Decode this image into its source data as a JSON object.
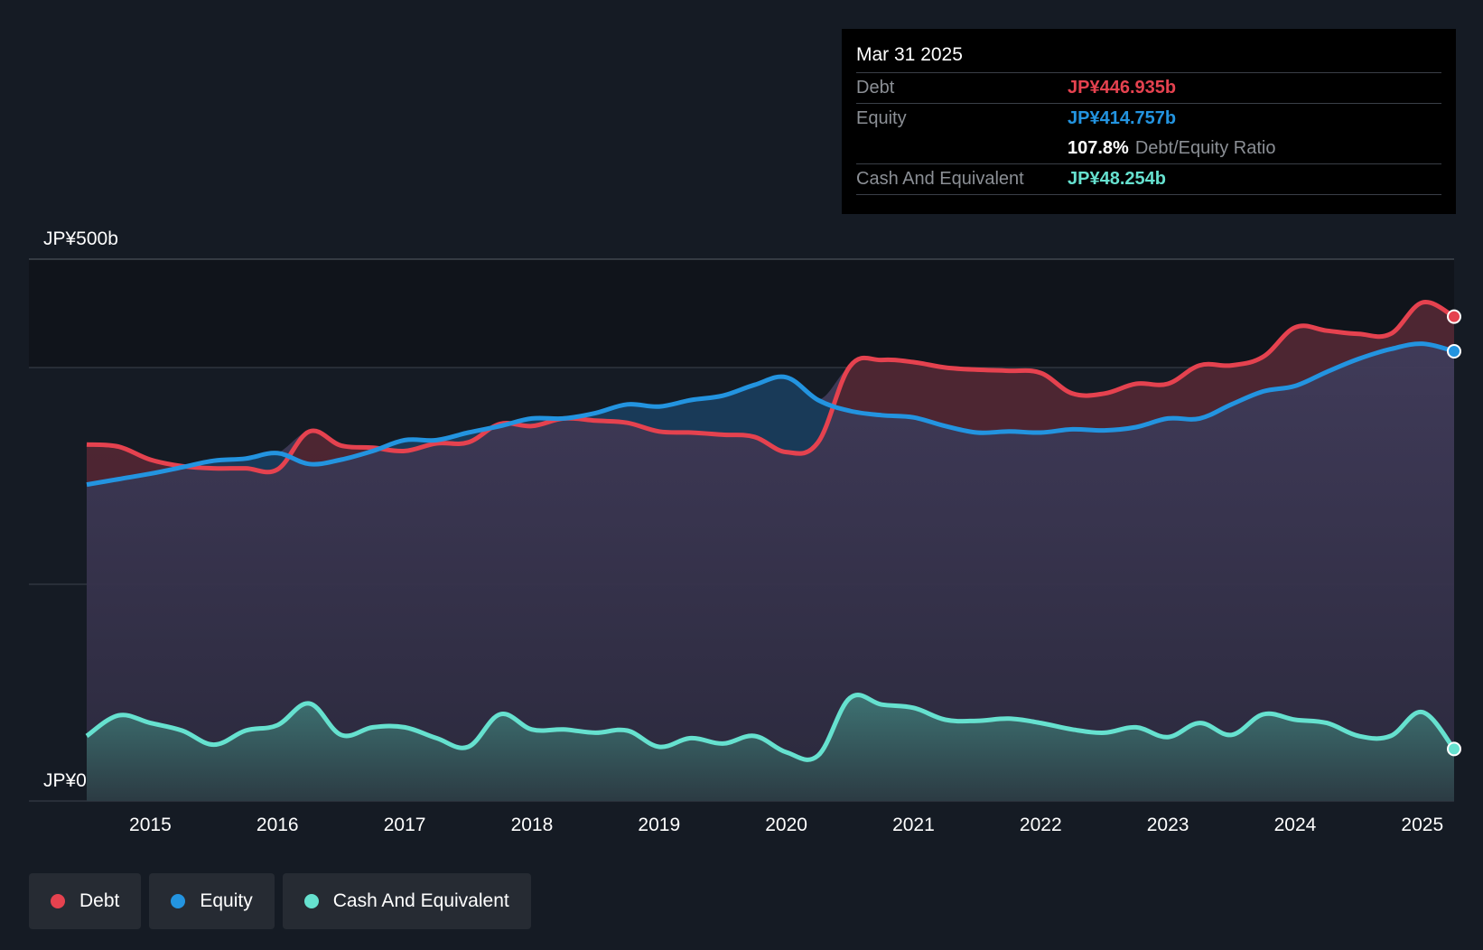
{
  "tooltip": {
    "date": "Mar 31 2025",
    "debt_label": "Debt",
    "debt_value": "JP¥446.935b",
    "equity_label": "Equity",
    "equity_value": "JP¥414.757b",
    "ratio_value": "107.8%",
    "ratio_label": "Debt/Equity Ratio",
    "cash_label": "Cash And Equivalent",
    "cash_value": "JP¥48.254b"
  },
  "legend": [
    {
      "label": "Debt",
      "color": "#e5424f"
    },
    {
      "label": "Equity",
      "color": "#2394e0"
    },
    {
      "label": "Cash And Equivalent",
      "color": "#66e1cf"
    }
  ],
  "colors": {
    "background": "#151b24",
    "debt": "#e5424f",
    "equity": "#2394e0",
    "cash": "#66e1cf"
  },
  "chart_data": {
    "type": "area",
    "ylim": [
      0,
      500
    ],
    "y_tick_labels": [
      "JP¥0",
      "JP¥500b"
    ],
    "y_gridlines": [
      0,
      200,
      400,
      500
    ],
    "x_ticks": [
      2015,
      2016,
      2017,
      2018,
      2019,
      2020,
      2021,
      2022,
      2023,
      2024,
      2025
    ],
    "xlim": [
      2014.5,
      2025.25
    ],
    "grid": true,
    "legend_position": "bottom-left",
    "series": [
      {
        "name": "Debt",
        "x": [
          2014.5,
          2014.75,
          2015,
          2015.25,
          2015.5,
          2015.75,
          2016,
          2016.25,
          2016.5,
          2016.75,
          2017,
          2017.25,
          2017.5,
          2017.75,
          2018,
          2018.25,
          2018.5,
          2018.75,
          2019,
          2019.25,
          2019.5,
          2019.75,
          2020,
          2020.25,
          2020.5,
          2020.75,
          2021,
          2021.25,
          2021.5,
          2021.75,
          2022,
          2022.25,
          2022.5,
          2022.75,
          2023,
          2023.25,
          2023.5,
          2023.75,
          2024,
          2024.25,
          2024.5,
          2024.75,
          2025,
          2025.25
        ],
        "values": [
          329,
          327,
          315,
          309,
          307,
          307,
          306,
          341,
          328,
          326,
          323,
          330,
          331,
          348,
          346,
          353,
          351,
          349,
          341,
          340,
          338,
          336,
          322,
          331,
          401,
          407,
          405,
          400,
          398,
          397,
          395,
          376,
          376,
          385,
          385,
          402,
          402,
          410,
          437,
          434,
          431,
          431,
          460,
          447
        ]
      },
      {
        "name": "Equity",
        "x": [
          2014.5,
          2014.75,
          2015,
          2015.25,
          2015.5,
          2015.75,
          2016,
          2016.25,
          2016.5,
          2016.75,
          2017,
          2017.25,
          2017.5,
          2017.75,
          2018,
          2018.25,
          2018.5,
          2018.75,
          2019,
          2019.25,
          2019.5,
          2019.75,
          2020,
          2020.25,
          2020.5,
          2020.75,
          2021,
          2021.25,
          2021.5,
          2021.75,
          2022,
          2022.25,
          2022.5,
          2022.75,
          2023,
          2023.25,
          2023.5,
          2023.75,
          2024,
          2024.25,
          2024.5,
          2024.75,
          2025,
          2025.25
        ],
        "values": [
          292,
          297,
          302,
          308,
          314,
          316,
          321,
          311,
          315,
          323,
          333,
          333,
          340,
          346,
          353,
          353,
          358,
          366,
          364,
          370,
          374,
          384,
          391,
          370,
          360,
          356,
          354,
          346,
          340,
          341,
          340,
          343,
          342,
          345,
          353,
          353,
          366,
          378,
          383,
          396,
          408,
          417,
          422,
          415
        ]
      },
      {
        "name": "Cash And Equivalent",
        "x": [
          2014.5,
          2014.75,
          2015,
          2015.25,
          2015.5,
          2015.75,
          2016,
          2016.25,
          2016.5,
          2016.75,
          2017,
          2017.25,
          2017.5,
          2017.75,
          2018,
          2018.25,
          2018.5,
          2018.75,
          2019,
          2019.25,
          2019.5,
          2019.75,
          2020,
          2020.25,
          2020.5,
          2020.75,
          2021,
          2021.25,
          2021.5,
          2021.75,
          2022,
          2022.25,
          2022.5,
          2022.75,
          2023,
          2023.25,
          2023.5,
          2023.75,
          2024,
          2024.25,
          2024.5,
          2024.75,
          2025,
          2025.25
        ],
        "values": [
          60,
          79,
          72,
          65,
          52,
          65,
          70,
          90,
          61,
          68,
          68,
          58,
          50,
          80,
          66,
          66,
          63,
          65,
          50,
          58,
          53,
          60,
          45,
          42,
          95,
          89,
          86,
          75,
          74,
          76,
          72,
          66,
          63,
          68,
          59,
          72,
          61,
          80,
          75,
          72,
          60,
          60,
          82,
          48
        ]
      }
    ]
  }
}
